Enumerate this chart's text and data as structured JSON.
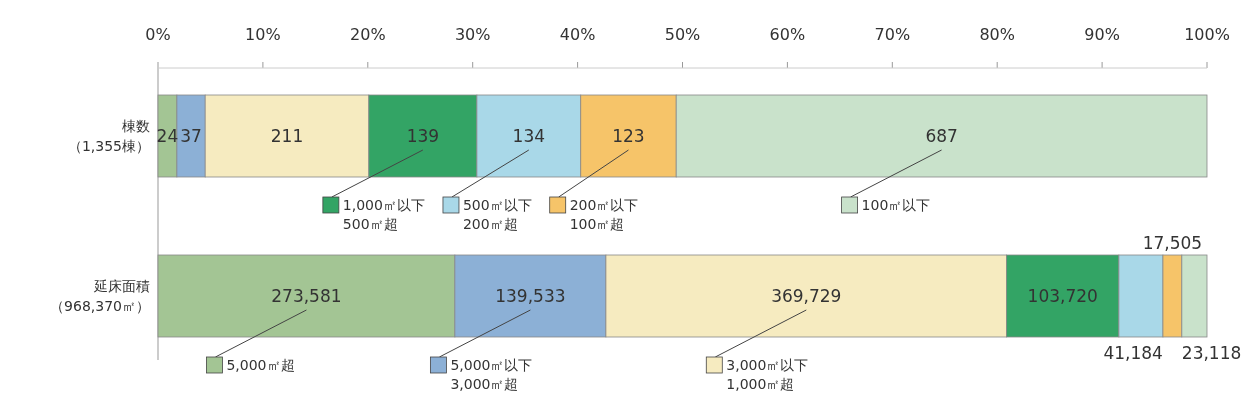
{
  "chart_data": {
    "type": "bar",
    "orientation": "horizontal",
    "stacked": true,
    "legend": "bottom",
    "grid": false,
    "categories": [
      "棟数（1,355棟）",
      "延床面積（968,370㎡）"
    ],
    "xlim": [
      0,
      100
    ],
    "xticks": [
      {
        "value": 0,
        "label": "0%"
      },
      {
        "value": 10,
        "label": "10%"
      },
      {
        "value": 20,
        "label": "20%"
      },
      {
        "value": 30,
        "label": "30%"
      },
      {
        "value": 40,
        "label": "40%"
      },
      {
        "value": 50,
        "label": "50%"
      },
      {
        "value": 60,
        "label": "60%"
      },
      {
        "value": 70,
        "label": "70%"
      },
      {
        "value": 80,
        "label": "80%"
      },
      {
        "value": 90,
        "label": "90%"
      },
      {
        "value": 100,
        "label": "100%"
      }
    ],
    "series": [
      {
        "name": "5,000㎡超",
        "color": "#a3c594",
        "values": [
          1.8,
          28.3
        ]
      },
      {
        "name": "5,000㎡以下 3,000㎡超",
        "color": "#8cb0d6",
        "values": [
          2.7,
          14.4
        ]
      },
      {
        "name": "3,000㎡以下 1,000㎡超",
        "color": "#f6ebc0",
        "values": [
          15.6,
          38.2
        ]
      },
      {
        "name": "1,000㎡以下 500㎡超",
        "color": "#33a465",
        "values": [
          10.3,
          10.7
        ]
      },
      {
        "name": "500㎡以下 200㎡超",
        "color": "#a9d8e8",
        "values": [
          9.9,
          4.2
        ]
      },
      {
        "name": "200㎡以下 100㎡超",
        "color": "#f6c469",
        "values": [
          9.1,
          1.8
        ]
      },
      {
        "name": "100㎡以下",
        "color": "#c9e2cb",
        "values": [
          50.6,
          2.4
        ]
      }
    ],
    "annotations": [
      "24",
      "37",
      "211",
      "139",
      "134",
      "123",
      "687",
      "273,581",
      "139,533",
      "369,729",
      "103,720",
      "41,184",
      "17,505",
      "23,118"
    ]
  }
}
